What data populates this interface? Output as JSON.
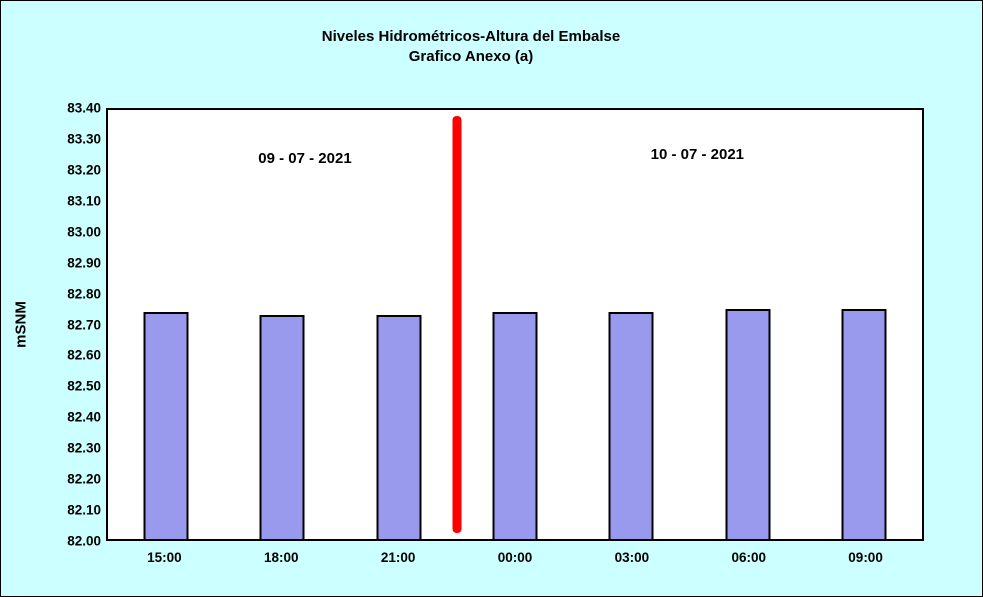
{
  "title": {
    "line1": "Niveles Hidrométricos-Altura del Embalse",
    "line2": "Grafico Anexo (a)"
  },
  "y_axis": {
    "label": "mSNM",
    "ticks": [
      "83.40",
      "83.30",
      "83.20",
      "83.10",
      "83.00",
      "82.90",
      "82.80",
      "82.70",
      "82.60",
      "82.50",
      "82.40",
      "82.30",
      "82.20",
      "82.10",
      "82.00"
    ]
  },
  "annotations": {
    "left_date": "09 - 07 - 2021",
    "right_date": "10 - 07 - 2021"
  },
  "colors": {
    "background": "#CCFFFF",
    "plot_background": "#FFFFFF",
    "bar_fill": "#9999EE",
    "bar_border": "#000000",
    "divider": "#FF0000"
  },
  "chart_data": {
    "type": "bar",
    "categories": [
      "15:00",
      "18:00",
      "21:00",
      "00:00",
      "03:00",
      "06:00",
      "09:00"
    ],
    "values": [
      82.74,
      82.73,
      82.73,
      82.74,
      82.74,
      82.75,
      82.75
    ],
    "title": "Niveles Hidrométricos-Altura del Embalse Grafico Anexo (a)",
    "xlabel": "",
    "ylabel": "mSNM",
    "ylim": [
      82.0,
      83.4
    ],
    "grid": false,
    "legend": "none",
    "divider": {
      "between": [
        "21:00",
        "00:00"
      ],
      "from": 82.02,
      "to": 83.38,
      "color": "#FF0000"
    }
  }
}
